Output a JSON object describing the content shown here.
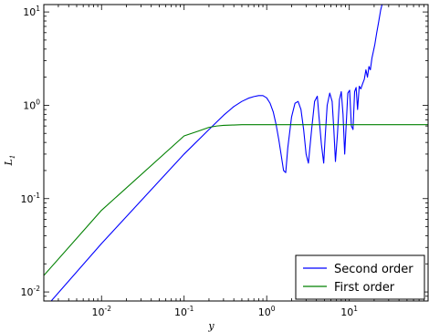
{
  "chart_data": {
    "type": "line",
    "xlabel": "y",
    "ylabel": "L",
    "ylabel_subscript": "1",
    "xscale": "log",
    "yscale": "log",
    "xlim": [
      0.002,
      90
    ],
    "ylim": [
      0.008,
      12
    ],
    "x_ticks": [
      {
        "base": "10",
        "exp": "-2",
        "value": 0.01
      },
      {
        "base": "10",
        "exp": "-1",
        "value": 0.1
      },
      {
        "base": "10",
        "exp": "0",
        "value": 1
      },
      {
        "base": "10",
        "exp": "1",
        "value": 10
      }
    ],
    "y_ticks": [
      {
        "base": "10",
        "exp": "-2",
        "value": 0.01
      },
      {
        "base": "10",
        "exp": "-1",
        "value": 0.1
      },
      {
        "base": "10",
        "exp": "0",
        "value": 1
      },
      {
        "base": "10",
        "exp": "1",
        "value": 10
      }
    ],
    "legend_position": "lower-right",
    "series": [
      {
        "name": "Second order",
        "color": "#0000ff",
        "x": [
          0.002,
          0.01,
          0.1,
          0.2,
          0.3,
          0.4,
          0.5,
          0.6,
          0.7,
          0.8,
          0.9,
          1.0,
          1.1,
          1.2,
          1.3,
          1.4,
          1.5,
          1.6,
          1.7,
          1.8,
          2.0,
          2.2,
          2.4,
          2.6,
          2.8,
          3.0,
          3.2,
          3.5,
          3.8,
          4.1,
          4.3,
          4.6,
          4.9,
          5.1,
          5.4,
          5.8,
          6.2,
          6.5,
          6.8,
          7.2,
          7.6,
          8.0,
          8.4,
          8.8,
          9.2,
          9.6,
          10.1,
          10.6,
          11.1,
          11.6,
          12.1,
          12.6,
          13.2,
          13.8,
          14.5,
          15.2,
          15.9,
          16.6,
          17.3,
          18.0,
          18.8,
          19.6,
          20.4,
          21.5,
          22.5,
          24.0,
          25.5,
          26.5
        ],
        "y": [
          0.0065,
          0.033,
          0.3,
          0.55,
          0.78,
          0.97,
          1.1,
          1.19,
          1.24,
          1.27,
          1.27,
          1.2,
          1.05,
          0.85,
          0.62,
          0.43,
          0.29,
          0.2,
          0.19,
          0.35,
          0.75,
          1.05,
          1.1,
          0.9,
          0.55,
          0.3,
          0.24,
          0.55,
          1.1,
          1.25,
          0.75,
          0.38,
          0.24,
          0.45,
          1.0,
          1.35,
          1.1,
          0.55,
          0.25,
          0.5,
          1.15,
          1.4,
          0.8,
          0.3,
          0.65,
          1.35,
          1.45,
          0.6,
          0.55,
          1.4,
          1.55,
          0.9,
          1.6,
          1.5,
          1.7,
          1.9,
          2.4,
          2.0,
          2.6,
          2.4,
          3.2,
          3.8,
          4.5,
          6.0,
          7.5,
          10.5,
          13.0,
          15.0
        ]
      },
      {
        "name": "First order",
        "color": "#008000",
        "x": [
          0.002,
          0.01,
          0.1,
          0.15,
          0.2,
          0.25,
          0.3,
          0.4,
          0.5,
          1.0,
          10,
          90
        ],
        "y": [
          0.015,
          0.075,
          0.47,
          0.53,
          0.58,
          0.6,
          0.61,
          0.615,
          0.62,
          0.62,
          0.62,
          0.62
        ]
      }
    ]
  }
}
